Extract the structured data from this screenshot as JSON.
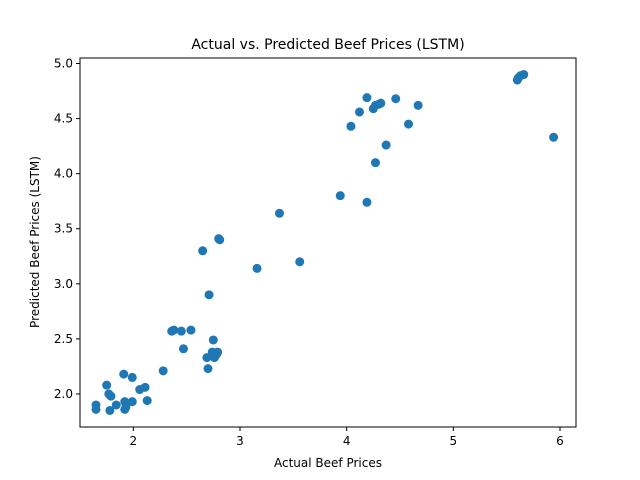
{
  "chart_data": {
    "type": "scatter",
    "title": "Actual vs. Predicted Beef Prices (LSTM)",
    "xlabel": "Actual Beef Prices",
    "ylabel": "Predicted Beef Prices (LSTM)",
    "xlim": [
      1.5,
      6.15
    ],
    "ylim": [
      1.7,
      5.05
    ],
    "xticks": [
      2,
      3,
      4,
      5,
      6
    ],
    "xtick_labels": [
      "2",
      "3",
      "4",
      "5",
      "6"
    ],
    "yticks": [
      2.0,
      2.5,
      3.0,
      3.5,
      4.0,
      4.5,
      5.0
    ],
    "ytick_labels": [
      "2.0",
      "2.5",
      "3.0",
      "3.5",
      "4.0",
      "4.5",
      "5.0"
    ],
    "grid": false,
    "marker_color": "#1f77b4",
    "points": [
      {
        "x": 1.65,
        "y": 1.9
      },
      {
        "x": 1.65,
        "y": 1.86
      },
      {
        "x": 1.75,
        "y": 2.08
      },
      {
        "x": 1.77,
        "y": 2.0
      },
      {
        "x": 1.79,
        "y": 1.98
      },
      {
        "x": 1.78,
        "y": 1.85
      },
      {
        "x": 1.84,
        "y": 1.9
      },
      {
        "x": 1.91,
        "y": 2.18
      },
      {
        "x": 1.92,
        "y": 1.93
      },
      {
        "x": 1.92,
        "y": 1.86
      },
      {
        "x": 1.93,
        "y": 1.88
      },
      {
        "x": 1.99,
        "y": 2.15
      },
      {
        "x": 1.99,
        "y": 1.93
      },
      {
        "x": 2.06,
        "y": 2.04
      },
      {
        "x": 2.11,
        "y": 2.06
      },
      {
        "x": 2.13,
        "y": 1.94
      },
      {
        "x": 2.28,
        "y": 2.21
      },
      {
        "x": 2.36,
        "y": 2.57
      },
      {
        "x": 2.38,
        "y": 2.58
      },
      {
        "x": 2.45,
        "y": 2.57
      },
      {
        "x": 2.47,
        "y": 2.41
      },
      {
        "x": 2.54,
        "y": 2.58
      },
      {
        "x": 2.65,
        "y": 3.3
      },
      {
        "x": 2.69,
        "y": 2.33
      },
      {
        "x": 2.7,
        "y": 2.23
      },
      {
        "x": 2.71,
        "y": 2.9
      },
      {
        "x": 2.74,
        "y": 2.38
      },
      {
        "x": 2.75,
        "y": 2.49
      },
      {
        "x": 2.76,
        "y": 2.33
      },
      {
        "x": 2.78,
        "y": 2.36
      },
      {
        "x": 2.79,
        "y": 2.38
      },
      {
        "x": 2.8,
        "y": 3.41
      },
      {
        "x": 2.81,
        "y": 3.4
      },
      {
        "x": 3.16,
        "y": 3.14
      },
      {
        "x": 3.37,
        "y": 3.64
      },
      {
        "x": 3.56,
        "y": 3.2
      },
      {
        "x": 3.94,
        "y": 3.8
      },
      {
        "x": 4.04,
        "y": 4.43
      },
      {
        "x": 4.12,
        "y": 4.56
      },
      {
        "x": 4.19,
        "y": 4.69
      },
      {
        "x": 4.19,
        "y": 3.74
      },
      {
        "x": 4.25,
        "y": 4.59
      },
      {
        "x": 4.27,
        "y": 4.62
      },
      {
        "x": 4.27,
        "y": 4.1
      },
      {
        "x": 4.3,
        "y": 4.63
      },
      {
        "x": 4.32,
        "y": 4.64
      },
      {
        "x": 4.37,
        "y": 4.26
      },
      {
        "x": 4.46,
        "y": 4.68
      },
      {
        "x": 4.58,
        "y": 4.45
      },
      {
        "x": 4.67,
        "y": 4.62
      },
      {
        "x": 5.6,
        "y": 4.85
      },
      {
        "x": 5.61,
        "y": 4.87
      },
      {
        "x": 5.63,
        "y": 4.89
      },
      {
        "x": 5.66,
        "y": 4.9
      },
      {
        "x": 5.94,
        "y": 4.33
      }
    ]
  }
}
